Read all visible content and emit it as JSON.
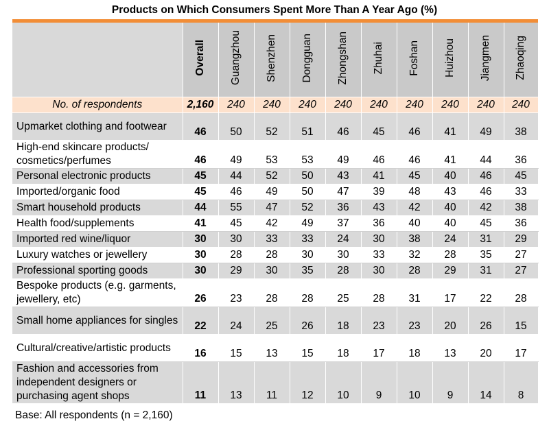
{
  "title": "Products on Which Consumers Spent More Than A Year Ago (%)",
  "footnote": "Base: All respondents (n = 2,160)",
  "chart_data": {
    "type": "table",
    "title": "Products on Which Consumers Spent More Than A Year Ago (%)",
    "columns": [
      "Overall",
      "Guangzhou",
      "Shenzhen",
      "Dongguan",
      "Zhongshan",
      "Zhuhai",
      "Foshan",
      "Huizhou",
      "Jiangmen",
      "Zhaoqing"
    ],
    "respondents_label": "No. of respondents",
    "respondents": [
      "2,160",
      "240",
      "240",
      "240",
      "240",
      "240",
      "240",
      "240",
      "240",
      "240"
    ],
    "rows": [
      {
        "label": "Upmarket clothing and footwear",
        "values": [
          46,
          50,
          52,
          51,
          46,
          45,
          46,
          41,
          49,
          38
        ]
      },
      {
        "label": "High-end skincare products/ cosmetics/perfumes",
        "values": [
          46,
          49,
          53,
          53,
          49,
          46,
          46,
          41,
          44,
          36
        ]
      },
      {
        "label": "Personal electronic products",
        "values": [
          45,
          44,
          52,
          50,
          43,
          41,
          45,
          40,
          46,
          45
        ]
      },
      {
        "label": "Imported/organic food",
        "values": [
          45,
          46,
          49,
          50,
          47,
          39,
          48,
          43,
          46,
          33
        ]
      },
      {
        "label": "Smart household products",
        "values": [
          44,
          55,
          47,
          52,
          36,
          43,
          42,
          40,
          42,
          38
        ]
      },
      {
        "label": "Health food/supplements",
        "values": [
          41,
          45,
          42,
          49,
          37,
          36,
          40,
          40,
          45,
          36
        ]
      },
      {
        "label": "Imported red wine/liquor",
        "values": [
          30,
          30,
          33,
          33,
          24,
          30,
          38,
          24,
          31,
          29
        ]
      },
      {
        "label": "Luxury watches or jewellery",
        "values": [
          30,
          28,
          28,
          30,
          30,
          33,
          32,
          28,
          35,
          27
        ]
      },
      {
        "label": "Professional sporting goods",
        "values": [
          30,
          29,
          30,
          35,
          28,
          30,
          28,
          29,
          31,
          27
        ]
      },
      {
        "label": "Bespoke products (e.g. garments, jewellery, etc)",
        "values": [
          26,
          23,
          28,
          28,
          25,
          28,
          31,
          17,
          22,
          28
        ]
      },
      {
        "label": "Small home appliances for singles",
        "values": [
          22,
          24,
          25,
          26,
          18,
          23,
          23,
          20,
          26,
          15
        ]
      },
      {
        "label": "Cultural/creative/artistic products",
        "values": [
          16,
          15,
          13,
          15,
          18,
          17,
          18,
          13,
          20,
          17
        ]
      },
      {
        "label": "Fashion and accessories from independent designers or purchasing agent shops",
        "values": [
          11,
          13,
          11,
          12,
          10,
          9,
          10,
          9,
          14,
          8
        ]
      }
    ]
  }
}
